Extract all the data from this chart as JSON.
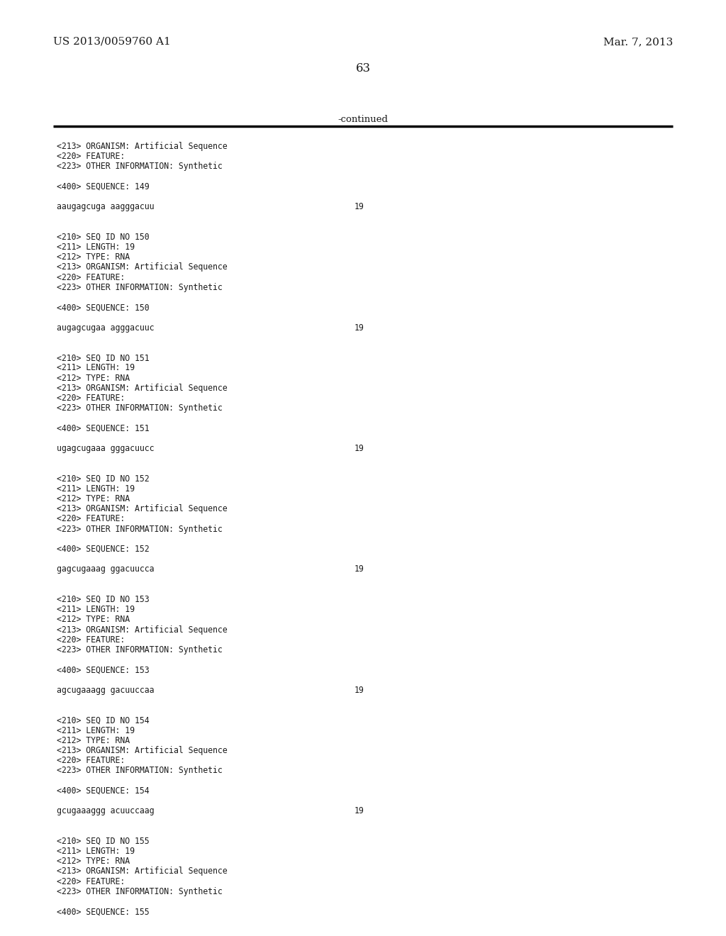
{
  "background_color": "#ffffff",
  "page_number": "63",
  "left_header": "US 2013/0059760 A1",
  "right_header": "Mar. 7, 2013",
  "continued_label": "-continued",
  "line_color": "#000000",
  "font_color": "#1a1a1a",
  "content_lines": [
    {
      "text": "<213> ORGANISM: Artificial Sequence",
      "num": null
    },
    {
      "text": "<220> FEATURE:",
      "num": null
    },
    {
      "text": "<223> OTHER INFORMATION: Synthetic",
      "num": null
    },
    {
      "text": "",
      "num": null
    },
    {
      "text": "<400> SEQUENCE: 149",
      "num": null
    },
    {
      "text": "",
      "num": null
    },
    {
      "text": "aaugagcuga aagggacuu",
      "num": "19"
    },
    {
      "text": "",
      "num": null
    },
    {
      "text": "",
      "num": null
    },
    {
      "text": "<210> SEQ ID NO 150",
      "num": null
    },
    {
      "text": "<211> LENGTH: 19",
      "num": null
    },
    {
      "text": "<212> TYPE: RNA",
      "num": null
    },
    {
      "text": "<213> ORGANISM: Artificial Sequence",
      "num": null
    },
    {
      "text": "<220> FEATURE:",
      "num": null
    },
    {
      "text": "<223> OTHER INFORMATION: Synthetic",
      "num": null
    },
    {
      "text": "",
      "num": null
    },
    {
      "text": "<400> SEQUENCE: 150",
      "num": null
    },
    {
      "text": "",
      "num": null
    },
    {
      "text": "augagcugaa agggacuuc",
      "num": "19"
    },
    {
      "text": "",
      "num": null
    },
    {
      "text": "",
      "num": null
    },
    {
      "text": "<210> SEQ ID NO 151",
      "num": null
    },
    {
      "text": "<211> LENGTH: 19",
      "num": null
    },
    {
      "text": "<212> TYPE: RNA",
      "num": null
    },
    {
      "text": "<213> ORGANISM: Artificial Sequence",
      "num": null
    },
    {
      "text": "<220> FEATURE:",
      "num": null
    },
    {
      "text": "<223> OTHER INFORMATION: Synthetic",
      "num": null
    },
    {
      "text": "",
      "num": null
    },
    {
      "text": "<400> SEQUENCE: 151",
      "num": null
    },
    {
      "text": "",
      "num": null
    },
    {
      "text": "ugagcugaaa gggacuucc",
      "num": "19"
    },
    {
      "text": "",
      "num": null
    },
    {
      "text": "",
      "num": null
    },
    {
      "text": "<210> SEQ ID NO 152",
      "num": null
    },
    {
      "text": "<211> LENGTH: 19",
      "num": null
    },
    {
      "text": "<212> TYPE: RNA",
      "num": null
    },
    {
      "text": "<213> ORGANISM: Artificial Sequence",
      "num": null
    },
    {
      "text": "<220> FEATURE:",
      "num": null
    },
    {
      "text": "<223> OTHER INFORMATION: Synthetic",
      "num": null
    },
    {
      "text": "",
      "num": null
    },
    {
      "text": "<400> SEQUENCE: 152",
      "num": null
    },
    {
      "text": "",
      "num": null
    },
    {
      "text": "gagcugaaag ggacuucca",
      "num": "19"
    },
    {
      "text": "",
      "num": null
    },
    {
      "text": "",
      "num": null
    },
    {
      "text": "<210> SEQ ID NO 153",
      "num": null
    },
    {
      "text": "<211> LENGTH: 19",
      "num": null
    },
    {
      "text": "<212> TYPE: RNA",
      "num": null
    },
    {
      "text": "<213> ORGANISM: Artificial Sequence",
      "num": null
    },
    {
      "text": "<220> FEATURE:",
      "num": null
    },
    {
      "text": "<223> OTHER INFORMATION: Synthetic",
      "num": null
    },
    {
      "text": "",
      "num": null
    },
    {
      "text": "<400> SEQUENCE: 153",
      "num": null
    },
    {
      "text": "",
      "num": null
    },
    {
      "text": "agcugaaagg gacuuccaa",
      "num": "19"
    },
    {
      "text": "",
      "num": null
    },
    {
      "text": "",
      "num": null
    },
    {
      "text": "<210> SEQ ID NO 154",
      "num": null
    },
    {
      "text": "<211> LENGTH: 19",
      "num": null
    },
    {
      "text": "<212> TYPE: RNA",
      "num": null
    },
    {
      "text": "<213> ORGANISM: Artificial Sequence",
      "num": null
    },
    {
      "text": "<220> FEATURE:",
      "num": null
    },
    {
      "text": "<223> OTHER INFORMATION: Synthetic",
      "num": null
    },
    {
      "text": "",
      "num": null
    },
    {
      "text": "<400> SEQUENCE: 154",
      "num": null
    },
    {
      "text": "",
      "num": null
    },
    {
      "text": "gcugaaaggg acuuccaag",
      "num": "19"
    },
    {
      "text": "",
      "num": null
    },
    {
      "text": "",
      "num": null
    },
    {
      "text": "<210> SEQ ID NO 155",
      "num": null
    },
    {
      "text": "<211> LENGTH: 19",
      "num": null
    },
    {
      "text": "<212> TYPE: RNA",
      "num": null
    },
    {
      "text": "<213> ORGANISM: Artificial Sequence",
      "num": null
    },
    {
      "text": "<220> FEATURE:",
      "num": null
    },
    {
      "text": "<223> OTHER INFORMATION: Synthetic",
      "num": null
    },
    {
      "text": "",
      "num": null
    },
    {
      "text": "<400> SEQUENCE: 155",
      "num": null
    }
  ]
}
